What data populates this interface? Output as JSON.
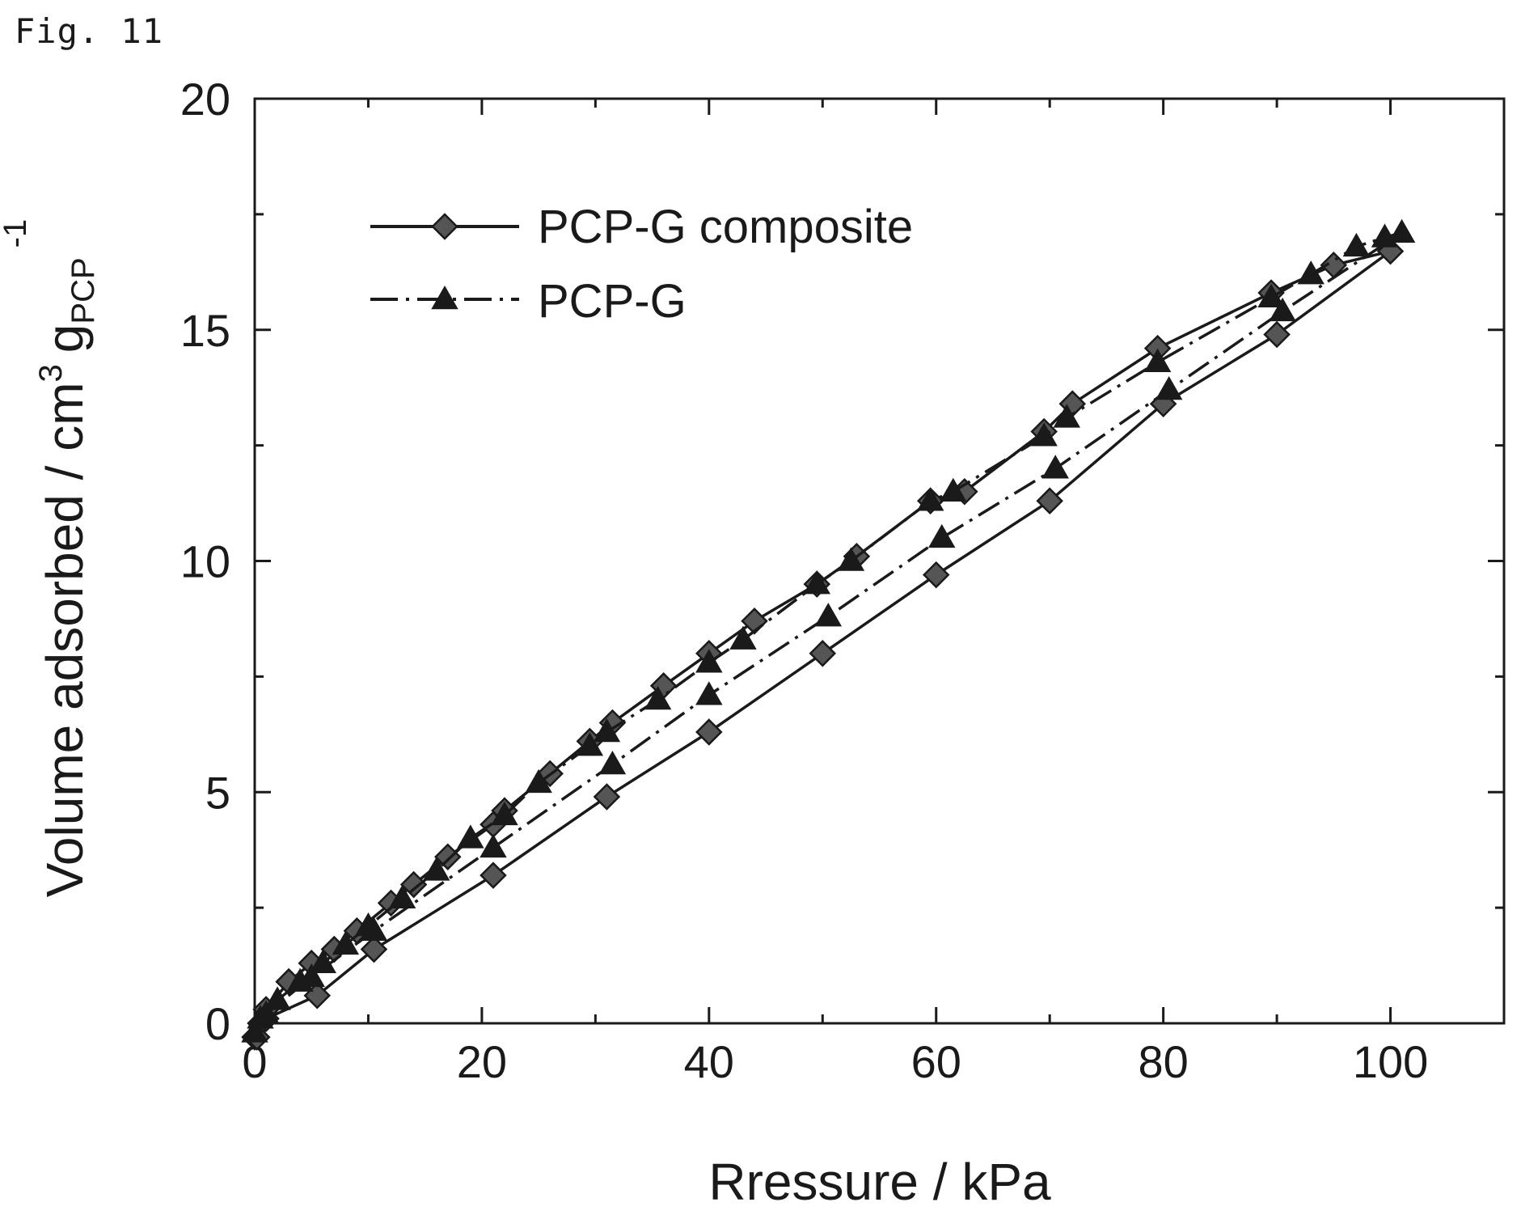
{
  "figure": {
    "label": "Fig. 11"
  },
  "chart_data": {
    "type": "line",
    "xlabel": "Rressure / kPa",
    "ylabel": "Volume adsorbed / cm",
    "ylabel_sup": "3",
    "ylabel_g": "g",
    "ylabel_sub": "PCP",
    "ylabel_exp": "-1",
    "xlim": [
      0,
      110
    ],
    "ylim": [
      0,
      20
    ],
    "xticks": [
      0,
      20,
      40,
      60,
      80,
      100
    ],
    "yticks": [
      0,
      5,
      10,
      15,
      20
    ],
    "grid": false,
    "legend_position": "top-left",
    "series": [
      {
        "name": "PCP-G composite",
        "marker": "diamond",
        "line": "solid",
        "color": "#1a1a1a",
        "points": [
          [
            0.0,
            -0.3
          ],
          [
            0.5,
            0.0
          ],
          [
            1.0,
            0.3
          ],
          [
            3.0,
            0.9
          ],
          [
            5.0,
            1.3
          ],
          [
            7.0,
            1.6
          ],
          [
            9.0,
            2.0
          ],
          [
            12.0,
            2.6
          ],
          [
            14.0,
            3.0
          ],
          [
            17.0,
            3.6
          ],
          [
            21.0,
            4.3
          ],
          [
            22.0,
            4.6
          ],
          [
            26.0,
            5.4
          ],
          [
            29.5,
            6.1
          ],
          [
            31.5,
            6.5
          ],
          [
            36.0,
            7.3
          ],
          [
            40.0,
            8.0
          ],
          [
            44.0,
            8.7
          ],
          [
            49.5,
            9.5
          ],
          [
            53.0,
            10.1
          ],
          [
            59.5,
            11.3
          ],
          [
            62.5,
            11.5
          ],
          [
            69.5,
            12.8
          ],
          [
            72.0,
            13.4
          ],
          [
            79.5,
            14.6
          ],
          [
            89.5,
            15.8
          ],
          [
            95.0,
            16.4
          ],
          [
            100.0,
            16.7
          ],
          [
            90.0,
            14.9
          ],
          [
            80.0,
            13.4
          ],
          [
            70.0,
            11.3
          ],
          [
            60.0,
            9.7
          ],
          [
            50.0,
            8.0
          ],
          [
            40.0,
            6.3
          ],
          [
            31.0,
            4.9
          ],
          [
            21.0,
            3.2
          ],
          [
            10.5,
            1.6
          ],
          [
            5.5,
            0.6
          ],
          [
            1.0,
            0.1
          ],
          [
            0.2,
            -0.3
          ]
        ]
      },
      {
        "name": "PCP-G",
        "marker": "triangle",
        "line": "dashdot",
        "color": "#1a1a1a",
        "points": [
          [
            0.0,
            -0.2
          ],
          [
            0.5,
            0.1
          ],
          [
            2.0,
            0.5
          ],
          [
            4.0,
            0.9
          ],
          [
            6.0,
            1.3
          ],
          [
            8.0,
            1.7
          ],
          [
            10.0,
            2.1
          ],
          [
            13.0,
            2.7
          ],
          [
            16.0,
            3.3
          ],
          [
            19.0,
            4.0
          ],
          [
            22.0,
            4.5
          ],
          [
            25.0,
            5.2
          ],
          [
            29.5,
            6.0
          ],
          [
            31.0,
            6.3
          ],
          [
            35.5,
            7.0
          ],
          [
            40.0,
            7.8
          ],
          [
            43.0,
            8.3
          ],
          [
            49.5,
            9.5
          ],
          [
            52.5,
            10.0
          ],
          [
            59.5,
            11.3
          ],
          [
            61.5,
            11.5
          ],
          [
            69.5,
            12.7
          ],
          [
            71.5,
            13.1
          ],
          [
            79.5,
            14.3
          ],
          [
            89.5,
            15.7
          ],
          [
            93.0,
            16.2
          ],
          [
            97.0,
            16.8
          ],
          [
            99.5,
            17.0
          ],
          [
            101.0,
            17.1
          ],
          [
            90.5,
            15.4
          ],
          [
            80.5,
            13.7
          ],
          [
            70.5,
            12.0
          ],
          [
            60.5,
            10.5
          ],
          [
            50.5,
            8.8
          ],
          [
            40.0,
            7.1
          ],
          [
            31.5,
            5.6
          ],
          [
            21.0,
            3.8
          ],
          [
            10.5,
            2.0
          ],
          [
            5.0,
            1.0
          ],
          [
            1.0,
            0.2
          ]
        ]
      }
    ]
  }
}
